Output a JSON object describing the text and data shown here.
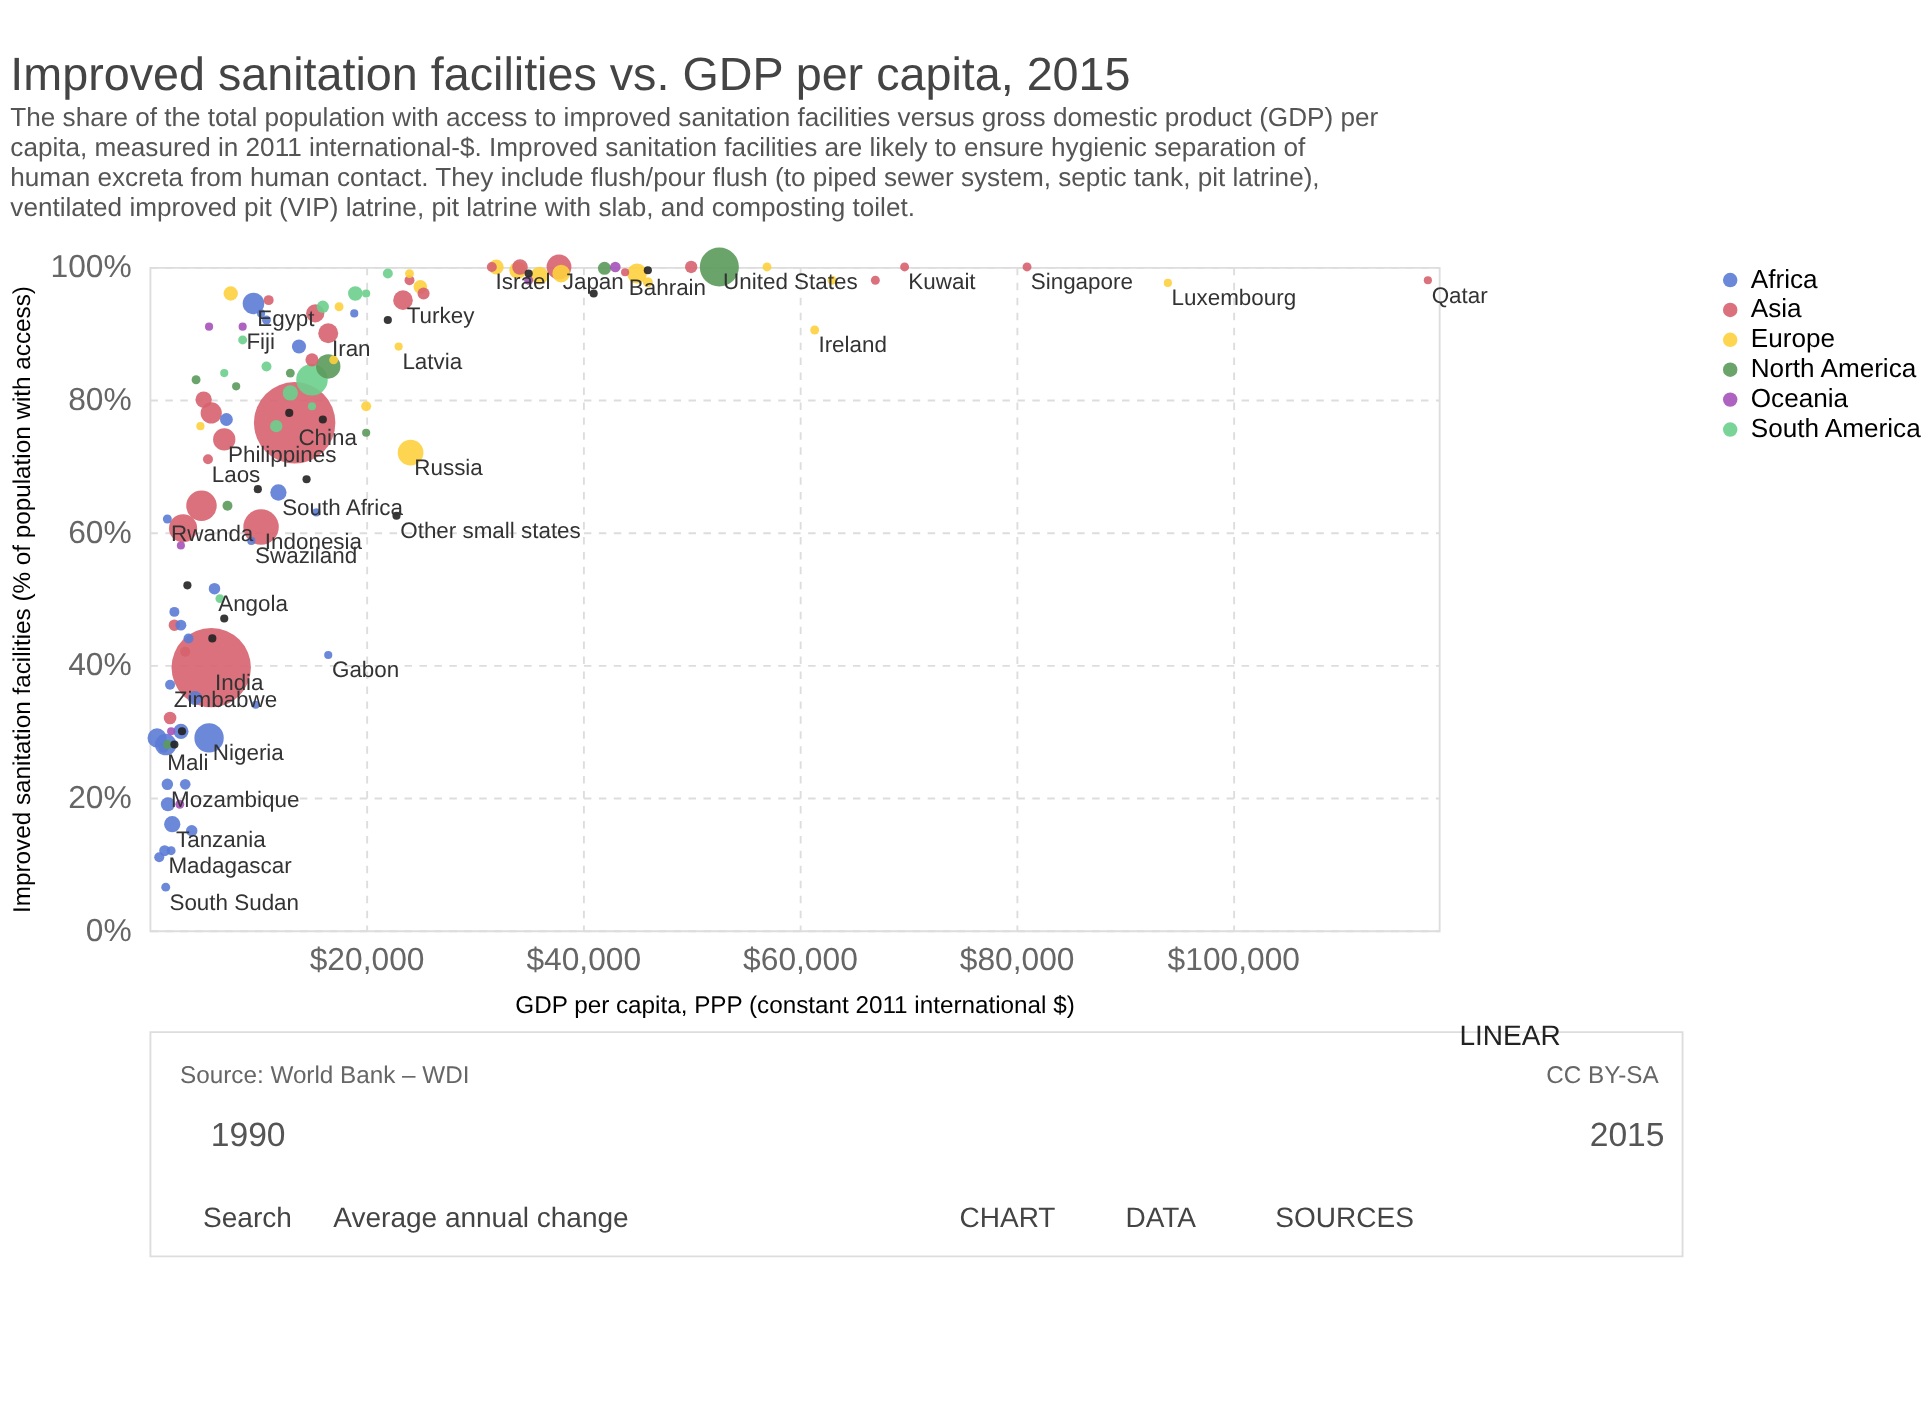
{
  "chart_data": {
    "type": "bubble",
    "title": "Improved sanitation facilities vs. GDP per capita, 2015",
    "subtitle": "The share of the total population with access to improved sanitation facilities versus gross domestic product (GDP) per capita, measured in 2011 international-$. Improved sanitation facilities are likely to ensure hygienic separation of human excreta from human contact. They include flush/pour flush (to piped sewer system, septic tank, pit latrine), ventilated improved pit (VIP) latrine, pit latrine with slab, and composting toilet.",
    "xlabel": "GDP per capita, PPP (constant 2011 international $)",
    "ylabel": "Improved sanitation facilities (% of population with access)",
    "xlim": [
      0,
      119000
    ],
    "ylim": [
      0,
      100
    ],
    "xticks": [
      {
        "value": 20000,
        "label": "$20,000"
      },
      {
        "value": 40000,
        "label": "$40,000"
      },
      {
        "value": 60000,
        "label": "$60,000"
      },
      {
        "value": 80000,
        "label": "$80,000"
      },
      {
        "value": 100000,
        "label": "$100,000"
      }
    ],
    "yticks": [
      {
        "value": 0,
        "label": "0%"
      },
      {
        "value": 20,
        "label": "20%"
      },
      {
        "value": 40,
        "label": "40%"
      },
      {
        "value": 60,
        "label": "60%"
      },
      {
        "value": 80,
        "label": "80%"
      },
      {
        "value": 100,
        "label": "100%"
      }
    ],
    "grid": true,
    "legend": "top right",
    "marker": "circle",
    "series": [
      {
        "name": "Africa",
        "color": "#5b7bd5",
        "x": [
          11900,
          9600,
          10300,
          1650,
          6000,
          16500,
          1900,
          5500,
          1300,
          1650,
          2100,
          1400,
          1500,
          1500,
          700,
          2900,
          3900,
          7100,
          13800,
          10800,
          1700,
          4200,
          2900,
          2300,
          3600,
          15400,
          18900,
          9800,
          900,
          2000,
          3300,
          9400
        ],
        "values": [
          66,
          94.5,
          93,
          62,
          51.5,
          41.5,
          37,
          29,
          27.5,
          22,
          16,
          12,
          6.5,
          28,
          29,
          30,
          15,
          77,
          88,
          92,
          19,
          35,
          46,
          48,
          44,
          63,
          93,
          34,
          11,
          12,
          22,
          58.7
        ],
        "sizes": [
          0.04,
          0.07,
          0.01,
          0.012,
          0.02,
          0.01,
          0.015,
          0.13,
          0.015,
          0.02,
          0.04,
          0.018,
          0.012,
          0.07,
          0.055,
          0.035,
          0.02,
          0.025,
          0.03,
          0.012,
          0.03,
          0.03,
          0.018,
          0.015,
          0.015,
          0.01,
          0.01,
          0.01,
          0.015,
          0.012,
          0.017,
          0.01
        ]
      },
      {
        "name": "Asia",
        "color": "#d6626e",
        "x": [
          13400,
          5700,
          10300,
          3100,
          4800,
          6900,
          5400,
          16500,
          23400,
          31600,
          37800,
          43900,
          69700,
          81000,
          118000,
          5700,
          15300,
          5000,
          2300,
          1900,
          34200,
          50000,
          25300,
          67000,
          3300,
          11000,
          15000,
          24000
        ],
        "values": [
          76.5,
          39.6,
          60.8,
          60.6,
          64,
          74,
          71,
          90,
          95,
          100,
          100,
          99.2,
          100,
          100,
          98,
          78,
          93,
          80,
          46,
          32,
          100,
          100,
          96,
          98,
          42,
          95,
          86,
          98
        ],
        "sizes": [
          1,
          0.95,
          0.19,
          0.12,
          0.14,
          0.075,
          0.015,
          0.06,
          0.058,
          0.015,
          0.093,
          0.01,
          0.012,
          0.012,
          0.01,
          0.068,
          0.05,
          0.04,
          0.02,
          0.024,
          0.037,
          0.023,
          0.022,
          0.012,
          0.015,
          0.015,
          0.026,
          0.015
        ]
      },
      {
        "name": "Europe",
        "color": "#fdd03e",
        "x": [
          24100,
          23000,
          61400,
          94000,
          45000,
          38000,
          36000,
          34000,
          32000,
          25000,
          7500,
          20000,
          63000,
          57000,
          46000,
          4700,
          17000,
          24000,
          17500
        ],
        "values": [
          72,
          88,
          90.5,
          97.6,
          99,
          99,
          98.7,
          99.5,
          100,
          97,
          96,
          79,
          98,
          100,
          97.7,
          76,
          86,
          99,
          94
        ],
        "sizes": [
          0.1,
          0.01,
          0.012,
          0.01,
          0.06,
          0.047,
          0.047,
          0.044,
          0.034,
          0.028,
          0.031,
          0.015,
          0.012,
          0.012,
          0.015,
          0.01,
          0.012,
          0.012,
          0.012
        ]
      },
      {
        "name": "North America",
        "color": "#5b9a5b",
        "x": [
          52600,
          16500,
          42000,
          7200,
          1650,
          4300,
          13000,
          20000,
          8000
        ],
        "values": [
          100,
          85,
          99.8,
          64,
          28,
          83,
          84,
          75,
          82
        ],
        "sizes": [
          0.23,
          0.09,
          0.026,
          0.015,
          0.012,
          0.012,
          0.012,
          0.01,
          0.01
        ]
      },
      {
        "name": "Oceania",
        "color": "#a652ba",
        "x": [
          8600,
          43000,
          35000,
          2800,
          2000,
          2900,
          5500
        ],
        "values": [
          91,
          100,
          98,
          19,
          30,
          58,
          91
        ],
        "sizes": [
          0.01,
          0.017,
          0.012,
          0.012,
          0.01,
          0.01,
          0.01
        ]
      },
      {
        "name": "South America",
        "color": "#6bcf8d",
        "x": [
          15000,
          13000,
          19000,
          11700,
          16000,
          22000,
          10800,
          6500,
          8600,
          20000,
          6900,
          15000
        ],
        "values": [
          83,
          81,
          96,
          76,
          94,
          99,
          85,
          50,
          89,
          96,
          84,
          79
        ],
        "sizes": [
          0.15,
          0.035,
          0.032,
          0.023,
          0.023,
          0.015,
          0.015,
          0.012,
          0.012,
          0.01,
          0.01,
          0.01
        ]
      },
      {
        "color": "#222222",
        "x": [
          22800,
          14500,
          10000,
          16000,
          5800,
          2300,
          3500,
          12900,
          41000,
          46000,
          22000,
          35000,
          6900,
          3000
        ],
        "values": [
          62.5,
          68,
          66.5,
          77,
          44,
          28,
          52,
          78,
          96,
          99.5,
          92,
          99,
          47,
          30
        ],
        "sizes": [
          0.01,
          0.01,
          0.01,
          0.01,
          0.01,
          0.01,
          0.01,
          0.01,
          0.01,
          0.01,
          0.01,
          0.01,
          0.01,
          0.01
        ]
      }
    ],
    "annotations": [
      {
        "text": "Egypt",
        "x": 9600,
        "y": 94.5
      },
      {
        "text": "Fiji",
        "x": 8600,
        "y": 91
      },
      {
        "text": "Iran",
        "x": 16500,
        "y": 90
      },
      {
        "text": "Turkey",
        "x": 23400,
        "y": 95
      },
      {
        "text": "Israel",
        "x": 31600,
        "y": 100
      },
      {
        "text": "Japan",
        "x": 37800,
        "y": 100
      },
      {
        "text": "Bahrain",
        "x": 43900,
        "y": 99.2
      },
      {
        "text": "United States",
        "x": 52600,
        "y": 100
      },
      {
        "text": "Kuwait",
        "x": 69700,
        "y": 100
      },
      {
        "text": "Singapore",
        "x": 81000,
        "y": 100
      },
      {
        "text": "Luxembourg",
        "x": 94000,
        "y": 97.6
      },
      {
        "text": "Qatar",
        "x": 118000,
        "y": 98
      },
      {
        "text": "Ireland",
        "x": 61400,
        "y": 90.5
      },
      {
        "text": "Latvia",
        "x": 23000,
        "y": 88
      },
      {
        "text": "China",
        "x": 13400,
        "y": 76.5
      },
      {
        "text": "Philippines",
        "x": 6900,
        "y": 74
      },
      {
        "text": "Laos",
        "x": 5400,
        "y": 71
      },
      {
        "text": "Russia",
        "x": 24100,
        "y": 72
      },
      {
        "text": "South Africa",
        "x": 11900,
        "y": 66
      },
      {
        "text": "Indonesia",
        "x": 10300,
        "y": 60.8
      },
      {
        "text": "Other small states",
        "x": 22800,
        "y": 62.5
      },
      {
        "text": "Rwanda",
        "x": 1650,
        "y": 62
      },
      {
        "text": "Swaziland",
        "x": 9400,
        "y": 58.7
      },
      {
        "text": "Angola",
        "x": 6000,
        "y": 51.5
      },
      {
        "text": "India",
        "x": 5700,
        "y": 39.6
      },
      {
        "text": "Gabon",
        "x": 16500,
        "y": 41.5
      },
      {
        "text": "Zimbabwe",
        "x": 1900,
        "y": 37
      },
      {
        "text": "Nigeria",
        "x": 5500,
        "y": 29
      },
      {
        "text": "Mali",
        "x": 1300,
        "y": 27.5
      },
      {
        "text": "Mozambique",
        "x": 1650,
        "y": 22
      },
      {
        "text": "Tanzania",
        "x": 2100,
        "y": 16
      },
      {
        "text": "Madagascar",
        "x": 1400,
        "y": 12
      },
      {
        "text": "South Sudan",
        "x": 1500,
        "y": 6.5
      },
      "LINEAR",
      "Source: World Bank – WDI",
      "CC BY-SA",
      "1990",
      "2015",
      "Search",
      "Average annual change",
      "CHART",
      "DATA",
      "SOURCES"
    ]
  }
}
